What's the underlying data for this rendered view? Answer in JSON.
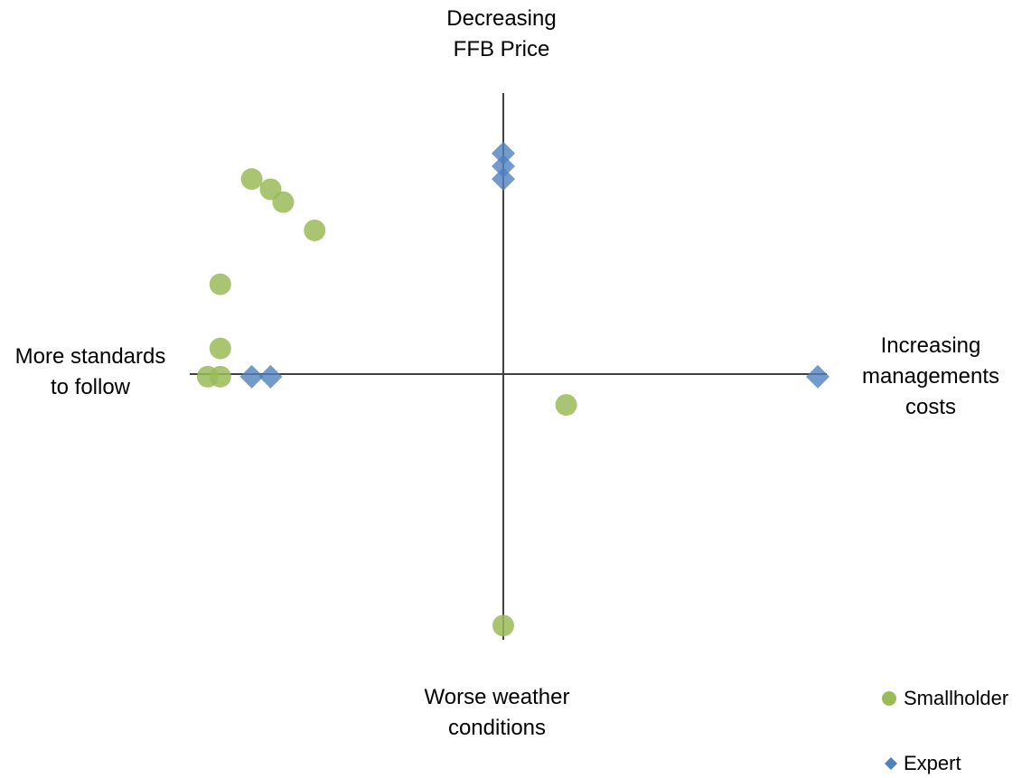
{
  "chart_data": {
    "type": "scatter",
    "title": "",
    "poles": {
      "top": "Decreasing\nFFB Price",
      "bottom": "Worse weather\nconditions",
      "left": "More standards\nto follow",
      "right": "Increasing\nmanagements\ncosts"
    },
    "xlim": [
      -1,
      1
    ],
    "ylim": [
      -1,
      1
    ],
    "grid": false,
    "legend_position": "bottom-right",
    "series": [
      {
        "name": "Smallholder",
        "marker": "circle",
        "color": "#9BBB59",
        "points": [
          {
            "x": -0.8,
            "y": 0.76
          },
          {
            "x": -0.74,
            "y": 0.72
          },
          {
            "x": -0.7,
            "y": 0.67
          },
          {
            "x": -0.6,
            "y": 0.56
          },
          {
            "x": -0.9,
            "y": 0.35
          },
          {
            "x": -0.9,
            "y": 0.1
          },
          {
            "x": -0.94,
            "y": -0.01
          },
          {
            "x": -0.9,
            "y": -0.01
          },
          {
            "x": 0.2,
            "y": -0.12
          },
          {
            "x": 0.0,
            "y": -0.98
          }
        ]
      },
      {
        "name": "Expert",
        "marker": "diamond",
        "color": "#4F81BD",
        "points": [
          {
            "x": 0.0,
            "y": 0.86
          },
          {
            "x": 0.0,
            "y": 0.81
          },
          {
            "x": 0.0,
            "y": 0.76
          },
          {
            "x": -0.8,
            "y": -0.01
          },
          {
            "x": -0.74,
            "y": -0.01
          },
          {
            "x": 1.0,
            "y": -0.01
          }
        ]
      }
    ]
  }
}
